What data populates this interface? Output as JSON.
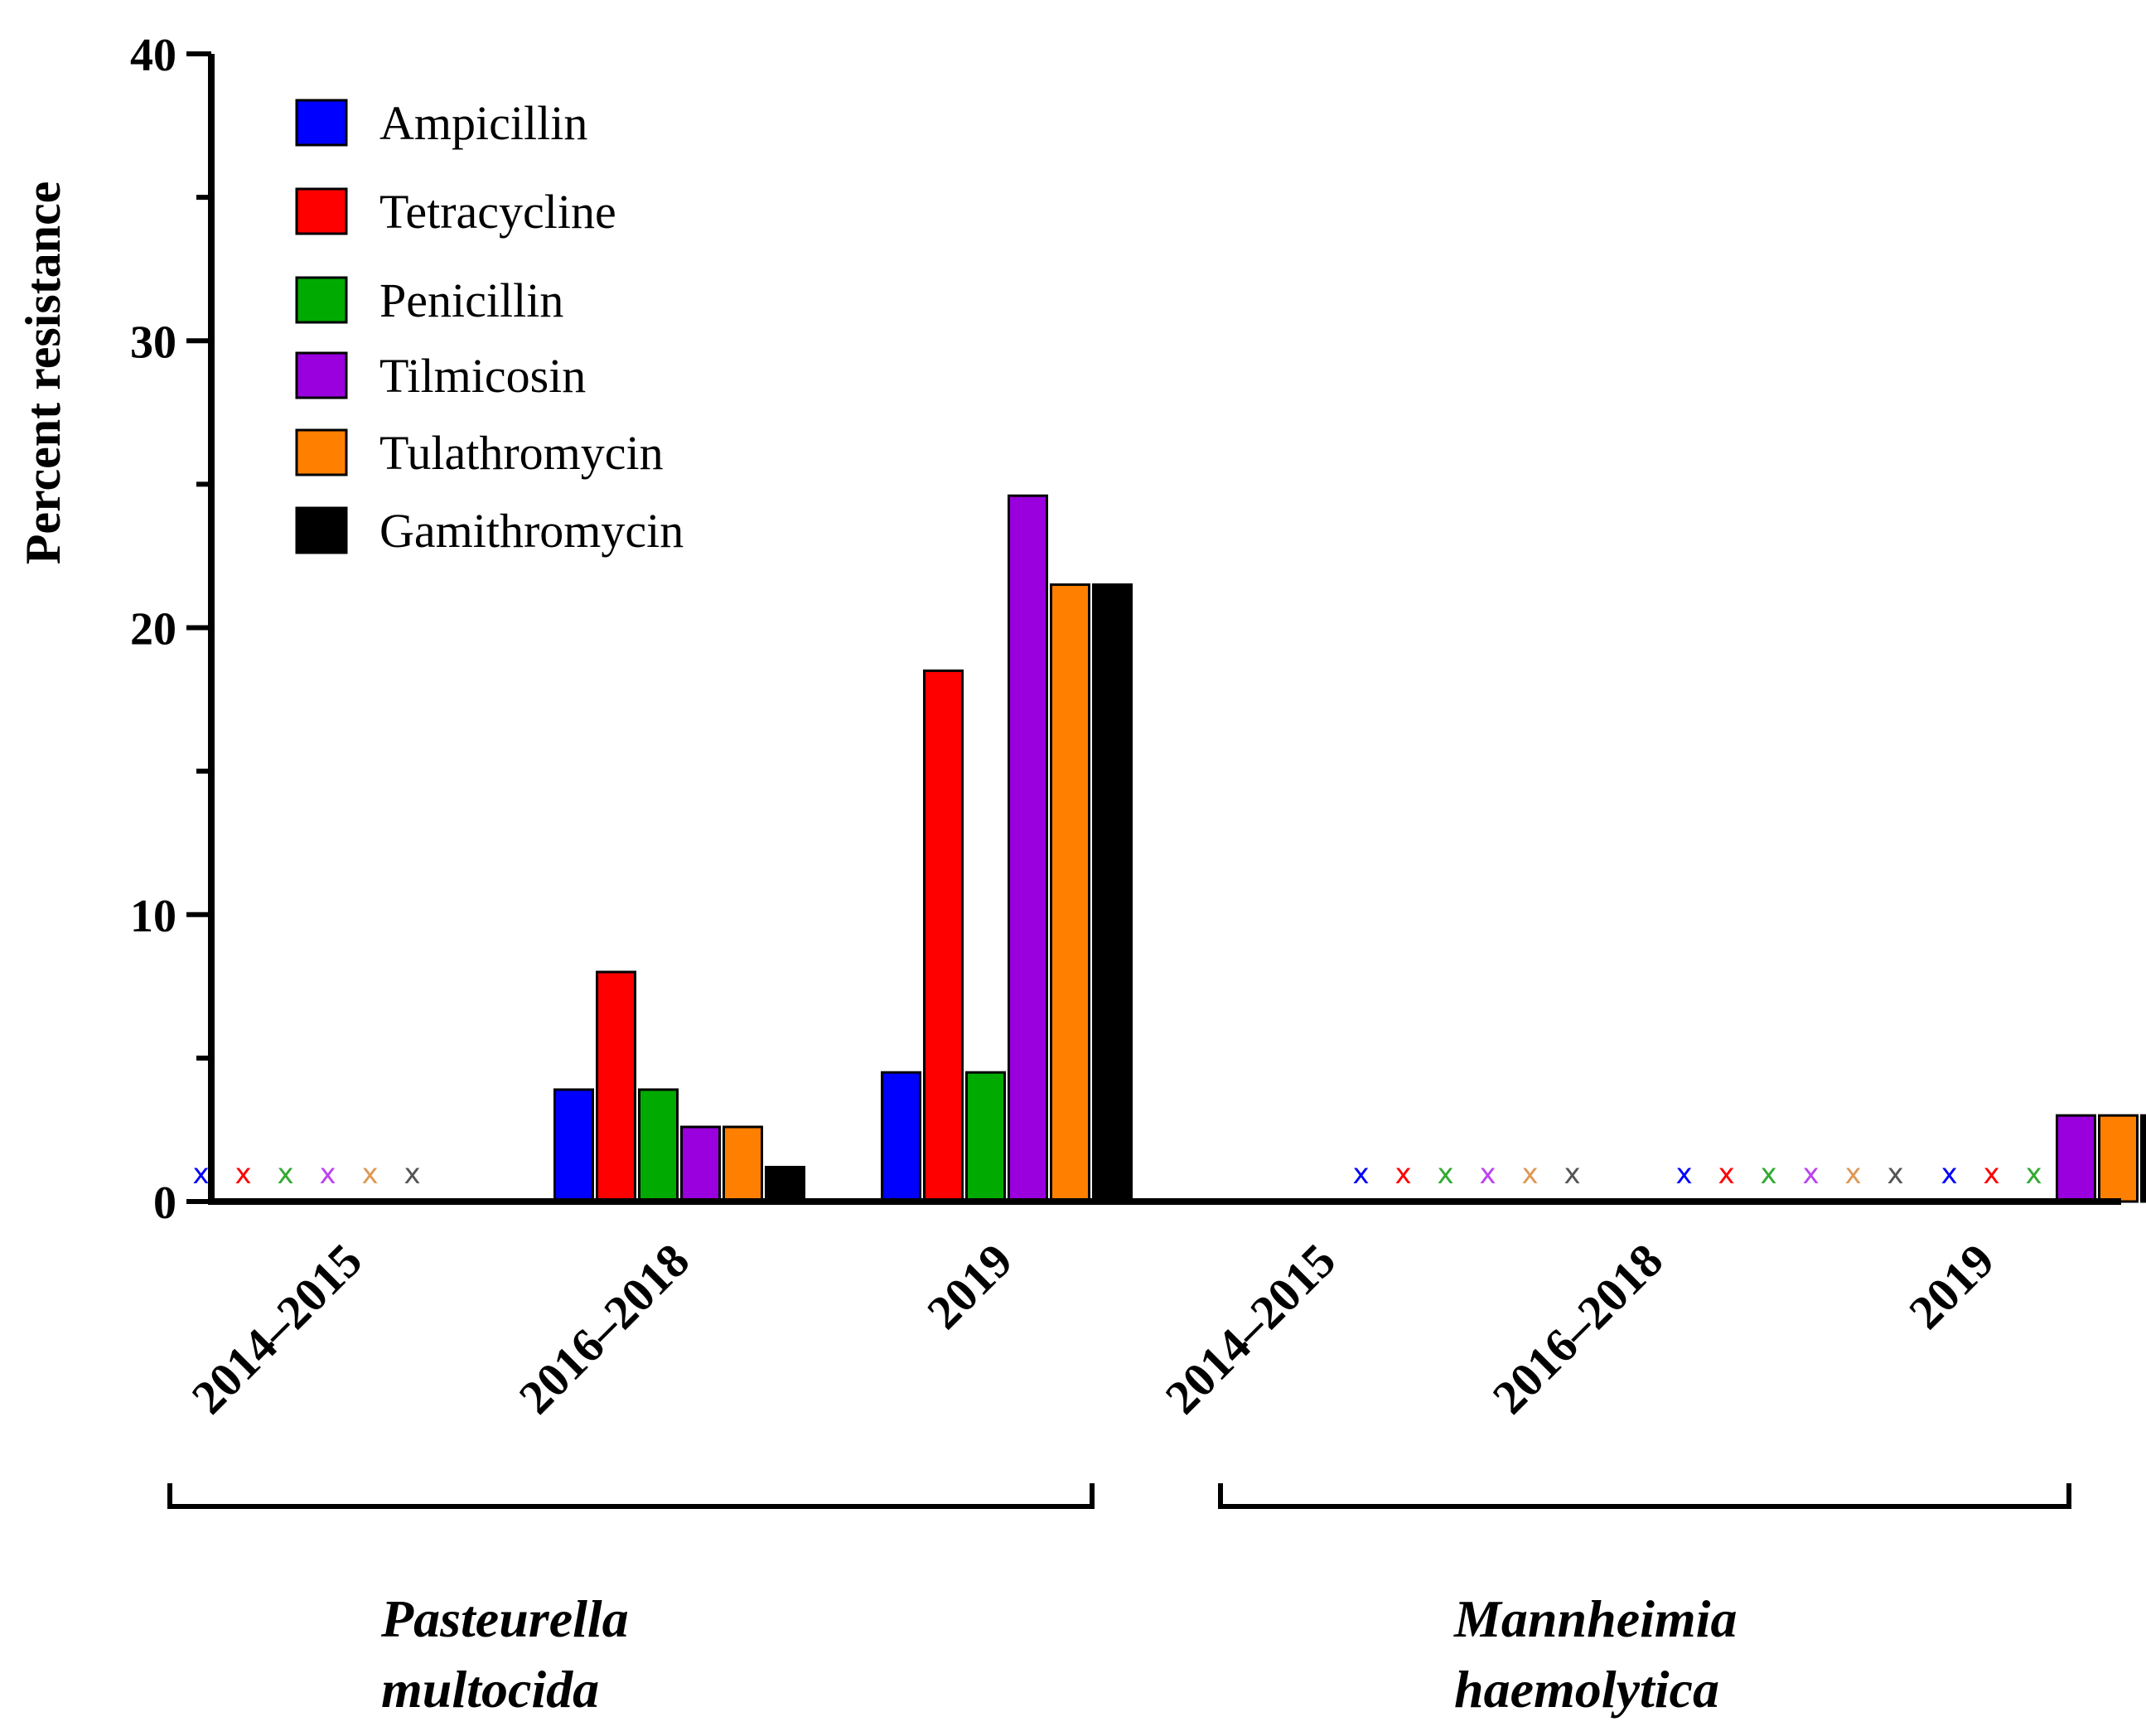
{
  "chart_data": {
    "type": "bar",
    "title": "",
    "xlabel": "",
    "ylabel": "Percent resistance",
    "ylim": [
      0,
      40
    ],
    "yticks": [
      0,
      10,
      20,
      30,
      40
    ],
    "legend_position": "top-left",
    "zero_marker": "x",
    "groups": [
      {
        "name_line1": "Pasteurella",
        "name_line2": "multocida",
        "categories": [
          "2014–2015",
          "2016–2018",
          "2019"
        ]
      },
      {
        "name_line1": "Mannheimia",
        "name_line2": "haemolytica",
        "categories": [
          "2014–2015",
          "2016–2018",
          "2019"
        ]
      }
    ],
    "series": [
      {
        "name": "Ampicillin",
        "color": "#0000ff",
        "zero_mark_color": "#0000ff",
        "values": [
          0,
          3.9,
          4.5,
          0,
          0,
          0
        ]
      },
      {
        "name": "Tetracycline",
        "color": "#ff0000",
        "zero_mark_color": "#ff0000",
        "values": [
          0,
          8.0,
          18.5,
          0,
          0,
          0
        ]
      },
      {
        "name": "Penicillin",
        "color": "#00aa00",
        "zero_mark_color": "#33aa33",
        "values": [
          0,
          3.9,
          4.5,
          0,
          0,
          0
        ]
      },
      {
        "name": "Tilmicosin",
        "color": "#9900dd",
        "zero_mark_color": "#bb44ee",
        "values": [
          0,
          2.6,
          24.6,
          0,
          0,
          3.0
        ]
      },
      {
        "name": "Tulathromycin",
        "color": "#ff8000",
        "zero_mark_color": "#dd9955",
        "values": [
          0,
          2.6,
          21.5,
          0,
          0,
          3.0
        ]
      },
      {
        "name": "Gamithromycin",
        "color": "#000000",
        "zero_mark_color": "#555555",
        "values": [
          0,
          1.2,
          21.5,
          0,
          0,
          3.0
        ]
      }
    ]
  }
}
